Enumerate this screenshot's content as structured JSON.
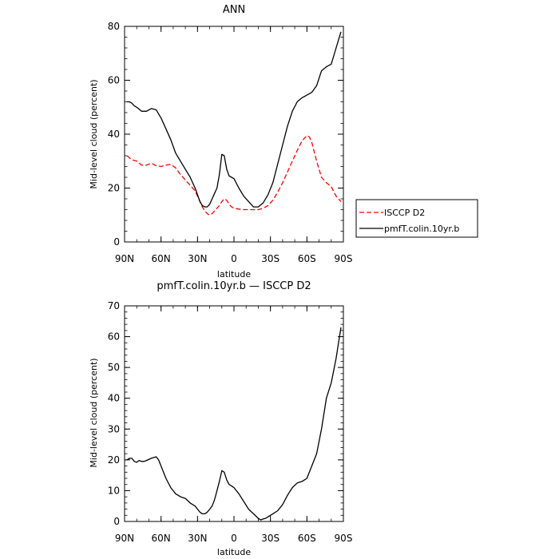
{
  "chart_data": [
    {
      "type": "line",
      "title": "ANN",
      "xlabel": "latitude",
      "ylabel": "Mid-level cloud (percent)",
      "xlim": [
        90,
        -90
      ],
      "ylim": [
        0,
        80
      ],
      "xticks": [
        90,
        60,
        30,
        0,
        -30,
        -60,
        -90
      ],
      "xtick_labels": [
        "90N",
        "60N",
        "30N",
        "0",
        "30S",
        "60S",
        "90S"
      ],
      "yticks": [
        0,
        20,
        40,
        60,
        80
      ],
      "ytick_labels": [
        "0",
        "20",
        "40",
        "60",
        "80"
      ],
      "legend": "right",
      "series": [
        {
          "name": "ISCCP D2",
          "color": "#ff0000",
          "dash": "dashed",
          "x": [
            88,
            84,
            80,
            76,
            72,
            68,
            64,
            60,
            56,
            52,
            48,
            44,
            40,
            36,
            32,
            28,
            26,
            24,
            22,
            20,
            18,
            16,
            14,
            12,
            10,
            8,
            6,
            4,
            2,
            0,
            -4,
            -8,
            -12,
            -16,
            -20,
            -24,
            -28,
            -32,
            -36,
            -40,
            -44,
            -48,
            -52,
            -56,
            -60,
            -62,
            -64,
            -68,
            -72,
            -76,
            -80,
            -84,
            -88
          ],
          "y": [
            32,
            30.5,
            30,
            28.5,
            28.5,
            29.2,
            28.3,
            28,
            28.5,
            28.8,
            27.5,
            25,
            23,
            21,
            19,
            15,
            13,
            11.5,
            10.5,
            10,
            10.5,
            11.5,
            12.5,
            13.5,
            15,
            16,
            15.5,
            14,
            13,
            12.5,
            12.2,
            12,
            12,
            12,
            12,
            12.5,
            13.5,
            15.5,
            18.5,
            22,
            26,
            30,
            34,
            37.5,
            39.5,
            39,
            37,
            30,
            24,
            22,
            20.5,
            17,
            15
          ]
        },
        {
          "name": "pmfT.colin.10yr.b",
          "color": "#000000",
          "dash": "solid",
          "x": [
            88,
            86,
            84,
            82,
            80,
            76,
            72,
            68,
            64,
            60,
            56,
            52,
            48,
            44,
            40,
            36,
            32,
            28,
            26,
            24,
            22,
            20,
            18,
            16,
            14,
            12,
            10,
            8,
            6,
            4,
            2,
            0,
            -4,
            -8,
            -12,
            -16,
            -20,
            -24,
            -28,
            -32,
            -36,
            -40,
            -44,
            -48,
            -52,
            -56,
            -60,
            -64,
            -68,
            -72,
            -76,
            -80,
            -84,
            -86,
            -88
          ],
          "y": [
            52,
            52,
            51.5,
            50.5,
            50,
            48.5,
            48.5,
            49.5,
            49,
            46,
            42,
            38,
            33,
            30,
            27,
            24,
            20,
            15,
            13.5,
            13,
            13,
            14,
            16,
            18,
            20,
            25,
            32.5,
            32,
            27,
            24.5,
            24,
            23.5,
            20,
            17,
            15,
            13,
            13,
            14.5,
            17.5,
            22,
            29,
            36,
            43,
            48.5,
            52,
            53.5,
            54.5,
            55.5,
            58,
            63.5,
            65,
            66,
            72,
            75,
            78
          ]
        }
      ]
    },
    {
      "type": "line",
      "title": "pmfT.colin.10yr.b — ISCCP D2",
      "xlabel": "latitude",
      "ylabel": "Mid-level cloud (percent)",
      "xlim": [
        90,
        -90
      ],
      "ylim": [
        0,
        70
      ],
      "xticks": [
        90,
        60,
        30,
        0,
        -30,
        -60,
        -90
      ],
      "xtick_labels": [
        "90N",
        "60N",
        "30N",
        "0",
        "30S",
        "60S",
        "90S"
      ],
      "yticks": [
        0,
        10,
        20,
        30,
        40,
        50,
        60,
        70
      ],
      "ytick_labels": [
        "0",
        "10",
        "20",
        "30",
        "40",
        "50",
        "60",
        "70"
      ],
      "series": [
        {
          "color": "#000000",
          "dash": "solid",
          "x": [
            88,
            86,
            84,
            82,
            80,
            78,
            76,
            74,
            72,
            68,
            64,
            62,
            60,
            56,
            52,
            48,
            44,
            40,
            36,
            32,
            28,
            26,
            24,
            22,
            20,
            18,
            16,
            14,
            12,
            10,
            8,
            6,
            4,
            2,
            0,
            -4,
            -8,
            -12,
            -16,
            -20,
            -22,
            -24,
            -26,
            -28,
            -32,
            -36,
            -40,
            -44,
            -48,
            -52,
            -56,
            -58,
            -60,
            -64,
            -68,
            -72,
            -76,
            -80,
            -84,
            -86,
            -88
          ],
          "y": [
            20,
            20.5,
            20.5,
            19.5,
            19.2,
            19.8,
            19.5,
            19.5,
            19.8,
            20.5,
            21,
            20,
            18,
            14,
            11,
            9,
            8,
            7.5,
            6,
            5,
            3,
            2.5,
            2.5,
            3,
            4,
            5,
            7,
            10,
            13,
            16.5,
            16,
            13.5,
            12,
            11.5,
            11,
            9,
            6.5,
            4,
            2.5,
            1,
            0.5,
            0.8,
            1,
            1.5,
            2.5,
            3.5,
            5.5,
            8.5,
            11,
            12.5,
            13,
            13.5,
            14,
            18,
            22,
            30,
            40,
            45,
            53,
            58,
            63
          ]
        }
      ]
    }
  ]
}
